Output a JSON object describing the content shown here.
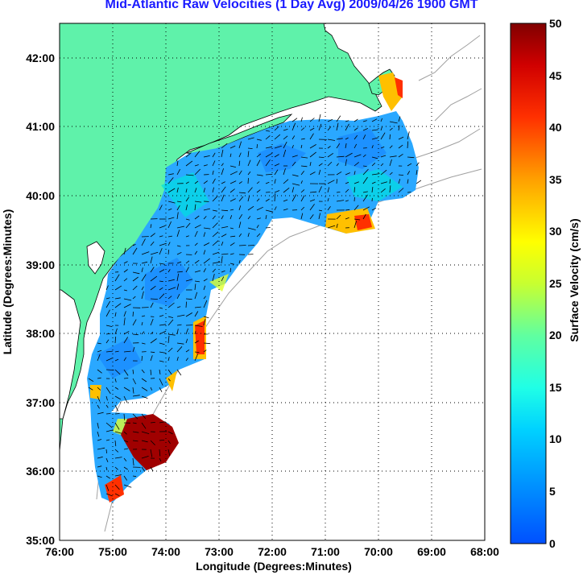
{
  "title": "Mid-Atlantic Raw Velocities (1 Day Avg) 2009/04/26 1900 GMT",
  "x_axis": {
    "label": "Longitude (Degrees:Minutes)",
    "ticks": [
      "76:00",
      "75:00",
      "74:00",
      "73:00",
      "72:00",
      "71:00",
      "70:00",
      "69:00",
      "68:00"
    ]
  },
  "y_axis": {
    "label": "Latitude (Degrees:Minutes)",
    "ticks": [
      "42:00",
      "41:00",
      "40:00",
      "39:00",
      "38:00",
      "37:00",
      "36:00",
      "35:00"
    ]
  },
  "colorbar": {
    "label": "Surface Velocity (cm/s)",
    "ticks": [
      "50",
      "45",
      "40",
      "35",
      "30",
      "25",
      "20",
      "15",
      "10",
      "5",
      "0"
    ],
    "range": [
      0,
      50
    ],
    "colors": [
      "#0050ff",
      "#00b4ff",
      "#00ffff",
      "#40ffb0",
      "#b0ff40",
      "#ffff00",
      "#ffa000",
      "#ff3000",
      "#d00000",
      "#800000"
    ]
  },
  "map": {
    "land_color": "#5ff2aa",
    "ocean_color": "#ffffff",
    "grid": "dotted",
    "lon_range": [
      -76,
      -68
    ],
    "lat_range": [
      35,
      42.5
    ]
  }
}
